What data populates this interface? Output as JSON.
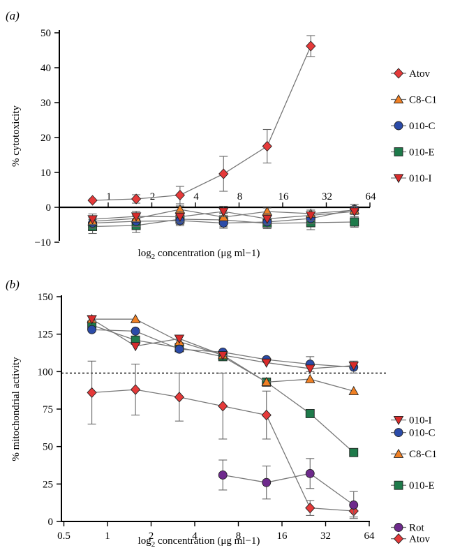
{
  "panel_a_label": "(a)",
  "panel_b_label": "(b)",
  "colors": {
    "Atov": "#e53a3a",
    "C8-C1": "#f08024",
    "010-C": "#2b4ba8",
    "010-E": "#1e7a4a",
    "010-I": "#d92b2b",
    "Rot": "#6e2a8c",
    "line": "#777777",
    "error": "#666666"
  },
  "chart_data": [
    {
      "id": "a",
      "type": "line",
      "ylabel": "% cytotoxicity",
      "xlabel": "log2 concentration (μg ml−1)",
      "ylim": [
        -10,
        50
      ],
      "yticks": [
        -10,
        0,
        10,
        20,
        30,
        40,
        50
      ],
      "xscale": "log2",
      "xticks": [
        1,
        2,
        4,
        8,
        16,
        32,
        64
      ],
      "grid": false,
      "legend": "right",
      "legend_order": [
        "Atov",
        "C8-C1",
        "010-C",
        "010-E",
        "010-I"
      ],
      "x": [
        0.78,
        1.56,
        3.13,
        6.25,
        12.5,
        25,
        50
      ],
      "series": [
        {
          "name": "Atov",
          "marker": "diamond",
          "values": [
            2,
            2.4,
            3.5,
            9.6,
            17.5,
            46.2,
            null
          ],
          "error": [
            0,
            1.2,
            2.5,
            5,
            4.8,
            3,
            0
          ]
        },
        {
          "name": "C8-C1",
          "marker": "triangle-up",
          "values": [
            -4,
            -3.2,
            -0.6,
            -2.8,
            -1.2,
            -1.8,
            -0.8
          ],
          "error": [
            1,
            1,
            1,
            1,
            1,
            1,
            1
          ]
        },
        {
          "name": "010-C",
          "marker": "circle",
          "values": [
            -4.5,
            -4,
            -3.8,
            -4.5,
            -4.2,
            -3.2,
            -0.6
          ],
          "error": [
            1.5,
            1.5,
            1.5,
            1.5,
            1.5,
            1.5,
            1.5
          ]
        },
        {
          "name": "010-E",
          "marker": "square",
          "values": [
            -5.5,
            -5.2,
            -3.4,
            -3.6,
            -4.6,
            -4.4,
            -4.2
          ],
          "error": [
            2,
            2,
            1.5,
            2,
            1.5,
            2,
            1.5
          ]
        },
        {
          "name": "010-I",
          "marker": "triangle-down",
          "values": [
            -3.4,
            -2.6,
            -2.7,
            -1.2,
            -3.3,
            -2.3,
            -1.2
          ],
          "error": [
            1.5,
            1.5,
            1.5,
            1.5,
            1.5,
            1.5,
            1.5
          ]
        }
      ]
    },
    {
      "id": "b",
      "type": "line",
      "ylabel": "% mitochondrial activity",
      "xlabel": "log2 concentration (μg ml−1)",
      "ylim": [
        0,
        150
      ],
      "yticks": [
        0,
        25,
        50,
        75,
        100,
        125,
        150
      ],
      "xscale": "log2",
      "xlim": [
        0.5,
        64
      ],
      "xticks": [
        0.5,
        1,
        2,
        4,
        8,
        16,
        32,
        64
      ],
      "reference_line": 99,
      "grid": false,
      "legend": "right",
      "x": [
        0.78,
        1.56,
        3.13,
        6.25,
        12.5,
        25,
        50
      ],
      "series": [
        {
          "name": "010-I",
          "marker": "triangle-down",
          "values": [
            135,
            117,
            122,
            111,
            106,
            102,
            104
          ],
          "error": [
            0,
            0,
            0,
            0,
            0,
            0,
            0
          ]
        },
        {
          "name": "010-C",
          "marker": "circle",
          "values": [
            128,
            127,
            115,
            113,
            108,
            105,
            103
          ],
          "error": [
            0,
            0,
            0,
            0,
            0,
            5,
            4
          ]
        },
        {
          "name": "C8-C1",
          "marker": "triangle-up",
          "values": [
            135,
            135,
            120,
            111,
            93,
            95,
            87
          ],
          "error": [
            0,
            0,
            0,
            0,
            0,
            0,
            0
          ]
        },
        {
          "name": "010-E",
          "marker": "square",
          "values": [
            131,
            121,
            116,
            110,
            93,
            72,
            46
          ],
          "error": [
            0,
            0,
            0,
            0,
            0,
            0,
            0
          ]
        },
        {
          "name": "Rot",
          "marker": "circle",
          "values": [
            null,
            null,
            null,
            31,
            26,
            32,
            11
          ],
          "error": [
            0,
            0,
            0,
            10,
            11,
            10,
            9
          ]
        },
        {
          "name": "Atov",
          "marker": "diamond",
          "values": [
            86,
            88,
            83,
            77,
            71,
            9,
            7
          ],
          "error": [
            21,
            17,
            16,
            22,
            16,
            5,
            4
          ]
        }
      ]
    }
  ]
}
